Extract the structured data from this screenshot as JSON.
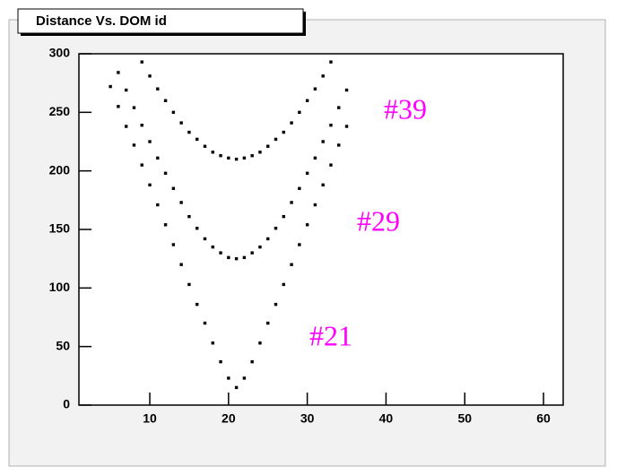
{
  "chart_data": {
    "type": "scatter",
    "title": "Distance Vs. DOM id",
    "series": [
      {
        "color": "#000000",
        "x": [
          9,
          10,
          11,
          12,
          13,
          14,
          15,
          16,
          17,
          18,
          19,
          20,
          21,
          22,
          23,
          24,
          25,
          26,
          27,
          28,
          29,
          30,
          31,
          32,
          33
        ],
        "values": [
          293,
          281,
          270,
          260,
          250,
          241,
          233,
          227,
          221,
          216,
          213,
          211,
          210,
          211,
          213,
          216,
          221,
          227,
          233,
          241,
          250,
          260,
          270,
          281,
          293
        ]
      },
      {
        "color": "#000000",
        "x": [
          6,
          7,
          8,
          9,
          10,
          11,
          12,
          13,
          14,
          15,
          16,
          17,
          18,
          19,
          20,
          21,
          22,
          23,
          24,
          25,
          26,
          27,
          28,
          29,
          30,
          31,
          32,
          33,
          34,
          35
        ],
        "values": [
          284,
          269,
          254,
          239,
          225,
          211,
          198,
          185,
          173,
          161,
          151,
          142,
          135,
          130,
          126,
          125,
          126,
          130,
          135,
          142,
          151,
          161,
          173,
          185,
          198,
          211,
          225,
          239,
          254,
          269
        ]
      },
      {
        "color": "#000000",
        "x": [
          5,
          6,
          7,
          8,
          9,
          10,
          11,
          12,
          13,
          14,
          15,
          16,
          17,
          18,
          19,
          20,
          21,
          22,
          23,
          24,
          25,
          26,
          27,
          28,
          29,
          30,
          31,
          32,
          33,
          34,
          35
        ],
        "values": [
          272,
          255,
          238,
          222,
          205,
          188,
          171,
          154,
          137,
          120,
          103,
          86,
          70,
          53,
          37,
          23,
          15,
          23,
          37,
          53,
          70,
          86,
          103,
          120,
          137,
          154,
          171,
          188,
          205,
          222,
          238
        ]
      }
    ],
    "annotations": [
      "#39",
      "#29",
      "#21"
    ],
    "annotation_color": "#ff00ff",
    "xlim": [
      1,
      62.5
    ],
    "xticks": [
      10,
      20,
      30,
      40,
      50,
      60
    ],
    "ylim": [
      0,
      300
    ],
    "yticks": [
      0,
      50,
      100,
      150,
      200,
      250,
      300
    ]
  }
}
